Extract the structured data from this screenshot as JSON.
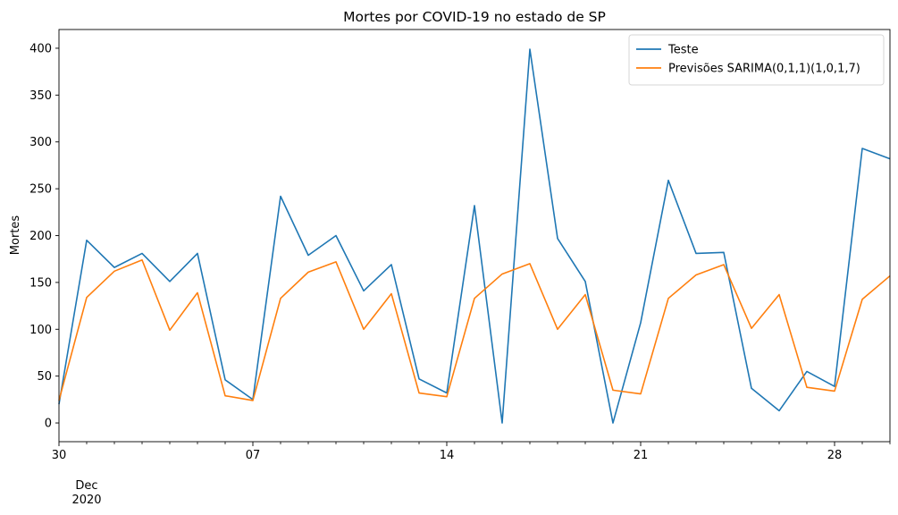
{
  "chart_data": {
    "type": "line",
    "title": "Mortes por COVID-19 no estado de SP",
    "xlabel": "",
    "ylabel": "Mortes",
    "x": [
      "2020-11-30",
      "2020-12-01",
      "2020-12-02",
      "2020-12-03",
      "2020-12-04",
      "2020-12-05",
      "2020-12-06",
      "2020-12-07",
      "2020-12-08",
      "2020-12-09",
      "2020-12-10",
      "2020-12-11",
      "2020-12-12",
      "2020-12-13",
      "2020-12-14",
      "2020-12-15",
      "2020-12-16",
      "2020-12-17",
      "2020-12-18",
      "2020-12-19",
      "2020-12-20",
      "2020-12-21",
      "2020-12-22",
      "2020-12-23",
      "2020-12-24",
      "2020-12-25",
      "2020-12-26",
      "2020-12-27",
      "2020-12-28",
      "2020-12-29",
      "2020-12-30"
    ],
    "xlim": [
      "2020-11-30",
      "2020-12-30"
    ],
    "ylim": [
      -20,
      420
    ],
    "yticks": [
      0,
      50,
      100,
      150,
      200,
      250,
      300,
      350,
      400
    ],
    "xticks": [
      {
        "date": "2020-11-30",
        "label": "30"
      },
      {
        "date": "2020-12-07",
        "label": "07"
      },
      {
        "date": "2020-12-14",
        "label": "14"
      },
      {
        "date": "2020-12-21",
        "label": "21"
      },
      {
        "date": "2020-12-28",
        "label": "28"
      }
    ],
    "x_month_label": {
      "date": "2020-12-01",
      "lines": [
        "Dec",
        "2020"
      ]
    },
    "legend_position": "upper right",
    "grid": false,
    "series": [
      {
        "name": "Teste",
        "color": "#1f77b4",
        "values": [
          20,
          195,
          166,
          181,
          151,
          181,
          46,
          25,
          242,
          179,
          200,
          141,
          169,
          47,
          32,
          232,
          0,
          399,
          197,
          151,
          0,
          107,
          259,
          181,
          182,
          37,
          13,
          55,
          39,
          293,
          282
        ]
      },
      {
        "name": "Previsões SARIMA(0,1,1)(1,0,1,7)",
        "color": "#ff7f0e",
        "values": [
          24,
          134,
          162,
          174,
          99,
          139,
          29,
          24,
          133,
          161,
          172,
          100,
          138,
          32,
          28,
          133,
          159,
          170,
          100,
          137,
          35,
          31,
          133,
          158,
          169,
          101,
          137,
          38,
          34,
          132,
          157
        ]
      }
    ]
  }
}
